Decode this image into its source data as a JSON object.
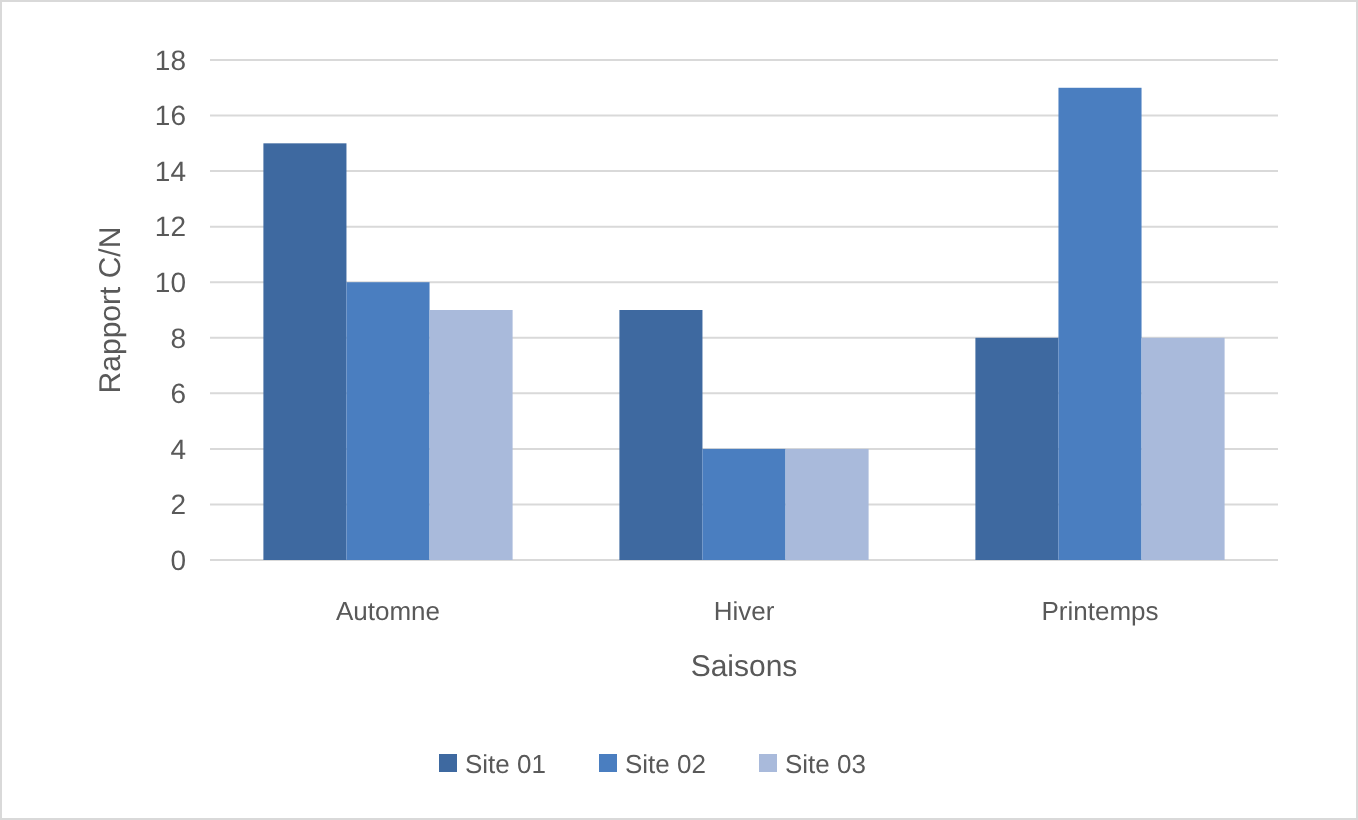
{
  "chart_data": {
    "type": "bar",
    "xlabel": "Saisons",
    "ylabel": "Rapport C/N",
    "categories": [
      "Automne",
      "Hiver",
      "Printemps"
    ],
    "series": [
      {
        "name": "Site 01",
        "color": "#3e69a0",
        "values": [
          15,
          9,
          8
        ]
      },
      {
        "name": "Site 02",
        "color": "#4a7ec0",
        "values": [
          10,
          4,
          17
        ]
      },
      {
        "name": "Site 03",
        "color": "#a9badb",
        "values": [
          9,
          4,
          8
        ]
      }
    ],
    "ylim": [
      0,
      18
    ],
    "yticks": [
      0,
      2,
      4,
      6,
      8,
      10,
      12,
      14,
      16,
      18
    ],
    "grid": "y",
    "legend": "bottom"
  }
}
